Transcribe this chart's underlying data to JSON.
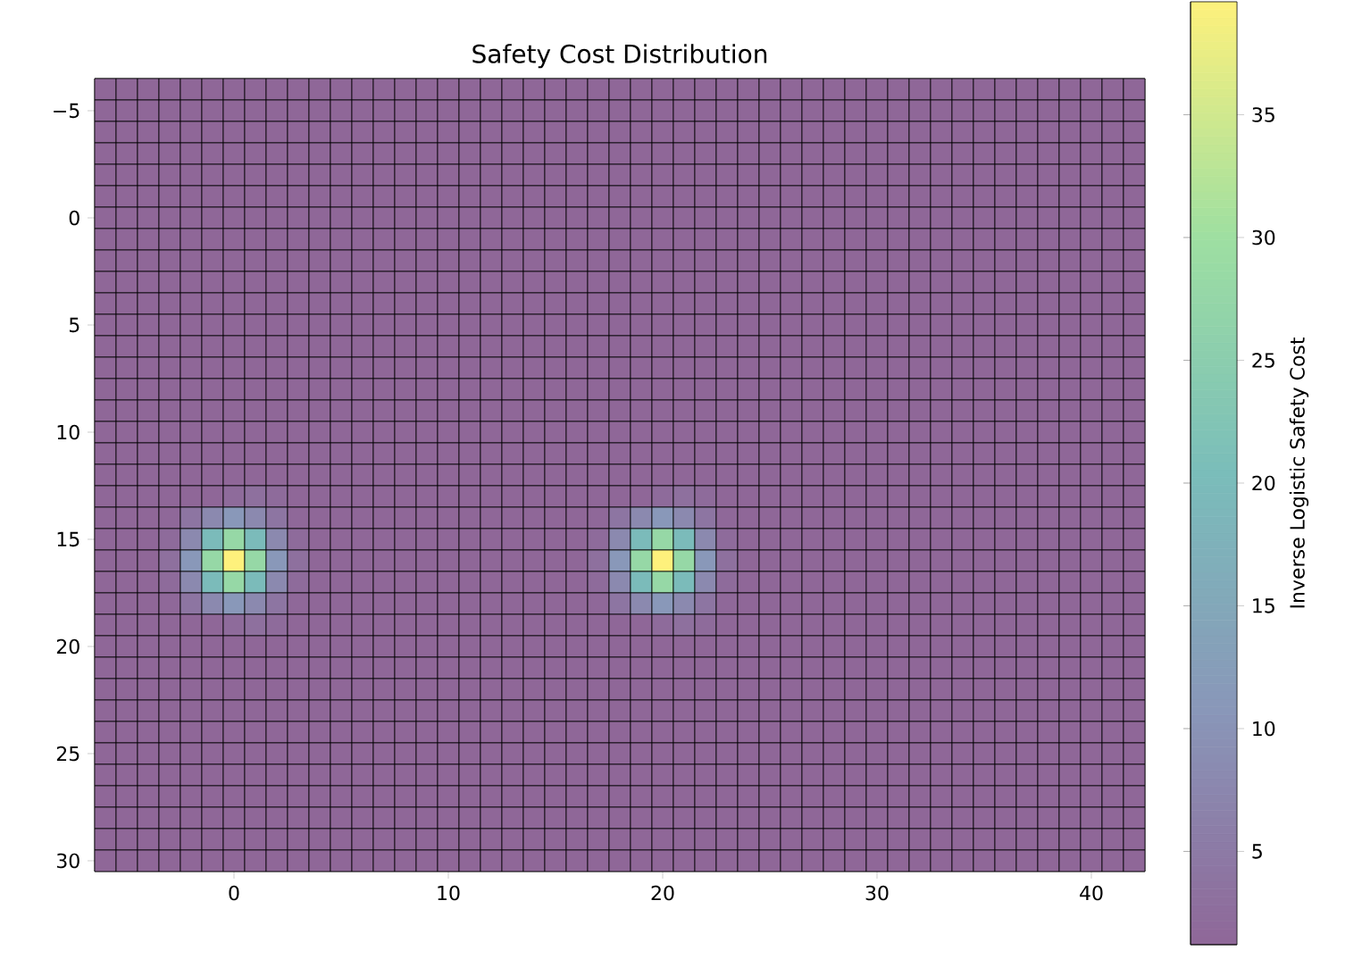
{
  "chart_data": {
    "type": "heatmap",
    "title": "Safety Cost Distribution",
    "clabel": "Inverse Logistic Safety Cost",
    "categories": [
      null,
      null,
      null,
      null,
      null,
      null,
      "0",
      null,
      null,
      null,
      null,
      null,
      null,
      null,
      null,
      null,
      "10",
      null,
      null,
      null,
      null,
      null,
      null,
      null,
      null,
      null,
      "20",
      null,
      null,
      null,
      null,
      null,
      null,
      null,
      null,
      null,
      "30",
      null,
      null,
      null,
      null,
      null,
      null,
      null,
      null,
      null,
      "40",
      null,
      null
    ],
    "y_categories": [
      null,
      "−5",
      null,
      null,
      null,
      null,
      "0",
      null,
      null,
      null,
      null,
      "5",
      null,
      null,
      null,
      null,
      "10",
      null,
      null,
      null,
      null,
      "15",
      null,
      null,
      null,
      null,
      "20",
      null,
      null,
      null,
      null,
      "25",
      null,
      null,
      null,
      null,
      "30"
    ],
    "clim": [
      1.2,
      39.6
    ],
    "cticks": [
      5,
      10,
      15,
      20,
      25,
      30,
      35
    ],
    "cells": [
      [
        1.2,
        1.2,
        1.2,
        1.2,
        1.2,
        1.2,
        1.2,
        1.2,
        1.2,
        1.2,
        1.2,
        1.2,
        1.2,
        1.2,
        1.2,
        1.2,
        1.2,
        1.2,
        1.2,
        1.2,
        1.2,
        1.2,
        1.2,
        1.2,
        1.2,
        1.2,
        1.2,
        1.2,
        1.2,
        1.2,
        1.2,
        1.2,
        1.2,
        1.2,
        1.2,
        1.2,
        1.2,
        1.2,
        1.2,
        1.2,
        1.2,
        1.2,
        1.2,
        1.2,
        1.2,
        1.2,
        1.2,
        1.2,
        1.2
      ],
      [
        1.2,
        1.2,
        1.2,
        1.2,
        1.2,
        1.2,
        1.2,
        1.2,
        1.2,
        1.2,
        1.2,
        1.2,
        1.2,
        1.2,
        1.2,
        1.2,
        1.2,
        1.2,
        1.2,
        1.2,
        1.2,
        1.2,
        1.2,
        1.2,
        1.2,
        1.2,
        1.2,
        1.2,
        1.2,
        1.2,
        1.2,
        1.2,
        1.2,
        1.2,
        1.2,
        1.2,
        1.2,
        1.2,
        1.2,
        1.2,
        1.2,
        1.2,
        1.2,
        1.2,
        1.2,
        1.2,
        1.2,
        1.2,
        1.2
      ],
      [
        1.2,
        1.2,
        1.2,
        1.2,
        1.2,
        1.2,
        1.2,
        1.2,
        1.2,
        1.2,
        1.2,
        1.2,
        1.2,
        1.2,
        1.2,
        1.2,
        1.2,
        1.2,
        1.2,
        1.2,
        1.2,
        1.2,
        1.2,
        1.2,
        1.2,
        1.2,
        1.2,
        1.2,
        1.2,
        1.2,
        1.2,
        1.2,
        1.2,
        1.2,
        1.2,
        1.2,
        1.2,
        1.2,
        1.2,
        1.2,
        1.2,
        1.2,
        1.2,
        1.2,
        1.2,
        1.2,
        1.2,
        1.2,
        1.2
      ],
      [
        1.2,
        1.2,
        1.2,
        1.2,
        1.2,
        1.2,
        1.2,
        1.2,
        1.2,
        1.2,
        1.2,
        1.2,
        1.2,
        1.2,
        1.2,
        1.2,
        1.2,
        1.2,
        1.2,
        1.2,
        1.2,
        1.2,
        1.2,
        1.2,
        1.2,
        1.2,
        1.2,
        1.2,
        1.2,
        1.2,
        1.2,
        1.2,
        1.2,
        1.2,
        1.2,
        1.2,
        1.2,
        1.2,
        1.2,
        1.2,
        1.2,
        1.2,
        1.2,
        1.2,
        1.2,
        1.2,
        1.2,
        1.2,
        1.2
      ],
      [
        1.2,
        1.2,
        1.2,
        1.2,
        1.2,
        1.2,
        1.2,
        1.2,
        1.2,
        1.2,
        1.2,
        1.2,
        1.2,
        1.2,
        1.2,
        1.2,
        1.2,
        1.2,
        1.2,
        1.2,
        1.2,
        1.2,
        1.2,
        1.2,
        1.2,
        1.2,
        1.2,
        1.2,
        1.2,
        1.2,
        1.2,
        1.2,
        1.2,
        1.2,
        1.2,
        1.2,
        1.2,
        1.2,
        1.2,
        1.2,
        1.2,
        1.2,
        1.2,
        1.2,
        1.2,
        1.2,
        1.2,
        1.2,
        1.2
      ],
      [
        1.2,
        1.2,
        1.2,
        1.2,
        1.2,
        1.2,
        1.2,
        1.2,
        1.2,
        1.2,
        1.2,
        1.2,
        1.2,
        1.2,
        1.2,
        1.2,
        1.2,
        1.2,
        1.2,
        1.2,
        1.2,
        1.2,
        1.2,
        1.2,
        1.2,
        1.2,
        1.2,
        1.2,
        1.2,
        1.2,
        1.2,
        1.2,
        1.2,
        1.2,
        1.2,
        1.2,
        1.2,
        1.2,
        1.2,
        1.2,
        1.2,
        1.2,
        1.2,
        1.2,
        1.2,
        1.2,
        1.2,
        1.2,
        1.2
      ],
      [
        1.2,
        1.2,
        1.2,
        1.2,
        1.2,
        1.2,
        1.2,
        1.2,
        1.2,
        1.2,
        1.2,
        1.2,
        1.2,
        1.2,
        1.2,
        1.2,
        1.2,
        1.2,
        1.2,
        1.2,
        1.2,
        1.2,
        1.2,
        1.2,
        1.2,
        1.2,
        1.2,
        1.2,
        1.2,
        1.2,
        1.2,
        1.2,
        1.2,
        1.2,
        1.2,
        1.2,
        1.2,
        1.2,
        1.2,
        1.2,
        1.2,
        1.2,
        1.2,
        1.2,
        1.2,
        1.2,
        1.2,
        1.2,
        1.2
      ],
      [
        1.2,
        1.2,
        1.2,
        1.2,
        1.2,
        1.2,
        1.2,
        1.2,
        1.2,
        1.2,
        1.2,
        1.2,
        1.2,
        1.2,
        1.2,
        1.2,
        1.2,
        1.2,
        1.2,
        1.2,
        1.2,
        1.2,
        1.2,
        1.2,
        1.2,
        1.2,
        1.2,
        1.2,
        1.2,
        1.2,
        1.2,
        1.2,
        1.2,
        1.2,
        1.2,
        1.2,
        1.2,
        1.2,
        1.2,
        1.2,
        1.2,
        1.2,
        1.2,
        1.2,
        1.2,
        1.2,
        1.2,
        1.2,
        1.2
      ],
      [
        1.2,
        1.2,
        1.2,
        1.2,
        1.2,
        1.2,
        1.2,
        1.2,
        1.2,
        1.2,
        1.2,
        1.2,
        1.2,
        1.2,
        1.2,
        1.2,
        1.2,
        1.2,
        1.2,
        1.2,
        1.2,
        1.2,
        1.2,
        1.2,
        1.2,
        1.2,
        1.2,
        1.2,
        1.2,
        1.2,
        1.2,
        1.2,
        1.2,
        1.2,
        1.2,
        1.2,
        1.2,
        1.2,
        1.2,
        1.2,
        1.2,
        1.2,
        1.2,
        1.2,
        1.2,
        1.2,
        1.2,
        1.2,
        1.2
      ],
      [
        1.2,
        1.2,
        1.2,
        1.2,
        1.2,
        1.2,
        1.2,
        1.2,
        1.2,
        1.2,
        1.2,
        1.2,
        1.2,
        1.2,
        1.2,
        1.2,
        1.2,
        1.2,
        1.2,
        1.2,
        1.2,
        1.2,
        1.2,
        1.2,
        1.2,
        1.2,
        1.2,
        1.2,
        1.2,
        1.2,
        1.2,
        1.2,
        1.2,
        1.2,
        1.2,
        1.2,
        1.2,
        1.2,
        1.2,
        1.2,
        1.2,
        1.2,
        1.2,
        1.2,
        1.2,
        1.2,
        1.2,
        1.2,
        1.2
      ],
      [
        1.2,
        1.2,
        1.2,
        1.2,
        1.2,
        1.2,
        1.2,
        1.2,
        1.2,
        1.2,
        1.2,
        1.2,
        1.2,
        1.2,
        1.2,
        1.2,
        1.2,
        1.2,
        1.2,
        1.2,
        1.2,
        1.2,
        1.2,
        1.2,
        1.2,
        1.2,
        1.2,
        1.2,
        1.2,
        1.2,
        1.2,
        1.2,
        1.2,
        1.2,
        1.2,
        1.2,
        1.2,
        1.2,
        1.2,
        1.2,
        1.2,
        1.2,
        1.2,
        1.2,
        1.2,
        1.2,
        1.2,
        1.2,
        1.2
      ],
      [
        1.2,
        1.2,
        1.2,
        1.2,
        1.2,
        1.2,
        1.2,
        1.2,
        1.2,
        1.2,
        1.2,
        1.2,
        1.2,
        1.2,
        1.2,
        1.2,
        1.2,
        1.2,
        1.2,
        1.2,
        1.2,
        1.2,
        1.2,
        1.2,
        1.2,
        1.2,
        1.2,
        1.2,
        1.2,
        1.2,
        1.2,
        1.2,
        1.2,
        1.2,
        1.2,
        1.2,
        1.2,
        1.2,
        1.2,
        1.2,
        1.2,
        1.2,
        1.2,
        1.2,
        1.2,
        1.2,
        1.2,
        1.2,
        1.2
      ],
      [
        1.2,
        1.2,
        1.2,
        1.2,
        1.2,
        1.2,
        1.2,
        1.2,
        1.2,
        1.2,
        1.2,
        1.2,
        1.2,
        1.2,
        1.2,
        1.2,
        1.2,
        1.2,
        1.2,
        1.2,
        1.2,
        1.2,
        1.2,
        1.2,
        1.2,
        1.2,
        1.2,
        1.2,
        1.2,
        1.2,
        1.2,
        1.2,
        1.2,
        1.2,
        1.2,
        1.2,
        1.2,
        1.2,
        1.2,
        1.2,
        1.2,
        1.2,
        1.2,
        1.2,
        1.2,
        1.2,
        1.2,
        1.2,
        1.2
      ],
      [
        1.2,
        1.2,
        1.2,
        1.2,
        1.2,
        1.2,
        1.2,
        1.2,
        1.2,
        1.2,
        1.2,
        1.2,
        1.2,
        1.2,
        1.2,
        1.2,
        1.2,
        1.2,
        1.2,
        1.2,
        1.2,
        1.2,
        1.2,
        1.2,
        1.2,
        1.2,
        1.2,
        1.2,
        1.2,
        1.2,
        1.2,
        1.2,
        1.2,
        1.2,
        1.2,
        1.2,
        1.2,
        1.2,
        1.2,
        1.2,
        1.2,
        1.2,
        1.2,
        1.2,
        1.2,
        1.2,
        1.2,
        1.2,
        1.2
      ],
      [
        1.2,
        1.2,
        1.2,
        1.2,
        1.2,
        1.2,
        1.2,
        1.2,
        1.2,
        1.2,
        1.2,
        1.2,
        1.2,
        1.2,
        1.2,
        1.2,
        1.2,
        1.2,
        1.2,
        1.2,
        1.2,
        1.2,
        1.2,
        1.2,
        1.2,
        1.2,
        1.2,
        1.2,
        1.2,
        1.2,
        1.2,
        1.2,
        1.2,
        1.2,
        1.2,
        1.2,
        1.2,
        1.2,
        1.2,
        1.2,
        1.2,
        1.2,
        1.2,
        1.2,
        1.2,
        1.2,
        1.2,
        1.2,
        1.2
      ],
      [
        1.2,
        1.2,
        1.2,
        1.2,
        1.2,
        1.2,
        1.2,
        1.2,
        1.2,
        1.2,
        1.2,
        1.2,
        1.2,
        1.2,
        1.2,
        1.2,
        1.2,
        1.2,
        1.2,
        1.2,
        1.2,
        1.2,
        1.2,
        1.2,
        1.2,
        1.2,
        1.2,
        1.2,
        1.2,
        1.2,
        1.2,
        1.2,
        1.2,
        1.2,
        1.2,
        1.2,
        1.2,
        1.2,
        1.2,
        1.2,
        1.2,
        1.2,
        1.2,
        1.2,
        1.2,
        1.2,
        1.2,
        1.2,
        1.2
      ],
      [
        1.2,
        1.2,
        1.2,
        1.2,
        1.2,
        1.2,
        1.2,
        1.2,
        1.2,
        1.2,
        1.2,
        1.2,
        1.2,
        1.2,
        1.2,
        1.2,
        1.2,
        1.2,
        1.2,
        1.2,
        1.2,
        1.2,
        1.2,
        1.2,
        1.2,
        1.2,
        1.2,
        1.2,
        1.2,
        1.2,
        1.2,
        1.2,
        1.2,
        1.2,
        1.2,
        1.2,
        1.2,
        1.2,
        1.2,
        1.2,
        1.2,
        1.2,
        1.2,
        1.2,
        1.2,
        1.2,
        1.2,
        1.2,
        1.2
      ],
      [
        1.2,
        1.2,
        1.2,
        1.2,
        1.2,
        1.2,
        1.2,
        1.2,
        1.2,
        1.2,
        1.2,
        1.2,
        1.2,
        1.2,
        1.2,
        1.2,
        1.2,
        1.2,
        1.2,
        1.2,
        1.2,
        1.2,
        1.2,
        1.2,
        1.2,
        1.2,
        1.2,
        1.2,
        1.2,
        1.2,
        1.2,
        1.2,
        1.2,
        1.2,
        1.2,
        1.2,
        1.2,
        1.2,
        1.2,
        1.2,
        1.2,
        1.2,
        1.2,
        1.2,
        1.2,
        1.2,
        1.2,
        1.2,
        1.2
      ],
      [
        1.2,
        1.2,
        1.2,
        1.2,
        1.2,
        1.2,
        1.2,
        1.2,
        1.2,
        1.2,
        1.2,
        1.2,
        1.2,
        1.2,
        1.2,
        1.2,
        1.2,
        1.2,
        1.2,
        1.2,
        1.2,
        1.2,
        1.2,
        1.2,
        1.2,
        1.2,
        1.2,
        1.2,
        1.2,
        1.2,
        1.2,
        1.2,
        1.2,
        1.2,
        1.2,
        1.2,
        1.2,
        1.2,
        1.2,
        1.2,
        1.2,
        1.2,
        1.2,
        1.2,
        1.2,
        1.2,
        1.2,
        1.2,
        1.2
      ],
      [
        1.2,
        1.2,
        1.2,
        1.2,
        1.2,
        1.2,
        2,
        3,
        2,
        1.2,
        1.2,
        1.2,
        1.2,
        1.2,
        1.2,
        1.2,
        1.2,
        1.2,
        1.2,
        1.2,
        1.2,
        1.2,
        1.2,
        1.2,
        1.2,
        1.2,
        2,
        3,
        2,
        1.2,
        1.2,
        1.2,
        1.2,
        1.2,
        1.2,
        1.2,
        1.2,
        1.2,
        1.2,
        1.2,
        1.2,
        1.2,
        1.2,
        1.2,
        1.2,
        1.2,
        1.2,
        1.2,
        1.2
      ],
      [
        1.2,
        1.2,
        1.2,
        1.5,
        4,
        8,
        11,
        8,
        4,
        1.5,
        1.2,
        1.2,
        1.2,
        1.2,
        1.2,
        1.2,
        1.2,
        1.2,
        1.2,
        1.2,
        1.2,
        1.2,
        1.2,
        1.5,
        4,
        8,
        11,
        8,
        4,
        1.5,
        1.2,
        1.2,
        1.2,
        1.2,
        1.2,
        1.2,
        1.2,
        1.2,
        1.2,
        1.2,
        1.2,
        1.2,
        1.2,
        1.2,
        1.2,
        1.2,
        1.2,
        1.2,
        1.2
      ],
      [
        1.2,
        1.2,
        1.2,
        2,
        8,
        20,
        28,
        20,
        8,
        2,
        1.2,
        1.2,
        1.2,
        1.2,
        1.2,
        1.2,
        1.2,
        1.2,
        1.2,
        1.2,
        1.2,
        1.2,
        1.2,
        2,
        8,
        20,
        28,
        20,
        8,
        2,
        1.2,
        1.2,
        1.2,
        1.2,
        1.2,
        1.2,
        1.2,
        1.2,
        1.2,
        1.2,
        1.2,
        1.2,
        1.2,
        1.2,
        1.2,
        1.2,
        1.2,
        1.2,
        1.2
      ],
      [
        1.2,
        1.2,
        1.2,
        3,
        11,
        28,
        39.6,
        28,
        11,
        3,
        1.2,
        1.2,
        1.2,
        1.2,
        1.2,
        1.2,
        1.2,
        1.2,
        1.2,
        1.2,
        1.2,
        1.2,
        1.2,
        3,
        11,
        28,
        39.6,
        28,
        11,
        3,
        1.2,
        1.2,
        1.2,
        1.2,
        1.2,
        1.2,
        1.2,
        1.2,
        1.2,
        1.2,
        1.2,
        1.2,
        1.2,
        1.2,
        1.2,
        1.2,
        1.2,
        1.2,
        1.2
      ],
      [
        1.2,
        1.2,
        1.2,
        2,
        8,
        20,
        28,
        20,
        8,
        2,
        1.2,
        1.2,
        1.2,
        1.2,
        1.2,
        1.2,
        1.2,
        1.2,
        1.2,
        1.2,
        1.2,
        1.2,
        1.2,
        2,
        8,
        20,
        28,
        20,
        8,
        2,
        1.2,
        1.2,
        1.2,
        1.2,
        1.2,
        1.2,
        1.2,
        1.2,
        1.2,
        1.2,
        1.2,
        1.2,
        1.2,
        1.2,
        1.2,
        1.2,
        1.2,
        1.2,
        1.2
      ],
      [
        1.2,
        1.2,
        1.2,
        1.5,
        4,
        8,
        11,
        8,
        4,
        1.5,
        1.2,
        1.2,
        1.2,
        1.2,
        1.2,
        1.2,
        1.2,
        1.2,
        1.2,
        1.2,
        1.2,
        1.2,
        1.2,
        1.5,
        4,
        8,
        11,
        8,
        4,
        1.5,
        1.2,
        1.2,
        1.2,
        1.2,
        1.2,
        1.2,
        1.2,
        1.2,
        1.2,
        1.2,
        1.2,
        1.2,
        1.2,
        1.2,
        1.2,
        1.2,
        1.2,
        1.2,
        1.2
      ],
      [
        1.2,
        1.2,
        1.2,
        1.2,
        1.2,
        1.2,
        2,
        3,
        2,
        1.2,
        1.2,
        1.2,
        1.2,
        1.2,
        1.2,
        1.2,
        1.2,
        1.2,
        1.2,
        1.2,
        1.2,
        1.2,
        1.2,
        1.2,
        1.2,
        1.2,
        2,
        3,
        2,
        1.2,
        1.2,
        1.2,
        1.2,
        1.2,
        1.2,
        1.2,
        1.2,
        1.2,
        1.2,
        1.2,
        1.2,
        1.2,
        1.2,
        1.2,
        1.2,
        1.2,
        1.2,
        1.2,
        1.2
      ],
      [
        1.2,
        1.2,
        1.2,
        1.2,
        1.2,
        1.2,
        1.2,
        1.2,
        1.2,
        1.2,
        1.2,
        1.2,
        1.2,
        1.2,
        1.2,
        1.2,
        1.2,
        1.2,
        1.2,
        1.2,
        1.2,
        1.2,
        1.2,
        1.2,
        1.2,
        1.2,
        1.2,
        1.2,
        1.2,
        1.2,
        1.2,
        1.2,
        1.2,
        1.2,
        1.2,
        1.2,
        1.2,
        1.2,
        1.2,
        1.2,
        1.2,
        1.2,
        1.2,
        1.2,
        1.2,
        1.2,
        1.2,
        1.2,
        1.2
      ],
      [
        1.2,
        1.2,
        1.2,
        1.2,
        1.2,
        1.2,
        1.2,
        1.2,
        1.2,
        1.2,
        1.2,
        1.2,
        1.2,
        1.2,
        1.2,
        1.2,
        1.2,
        1.2,
        1.2,
        1.2,
        1.2,
        1.2,
        1.2,
        1.2,
        1.2,
        1.2,
        1.2,
        1.2,
        1.2,
        1.2,
        1.2,
        1.2,
        1.2,
        1.2,
        1.2,
        1.2,
        1.2,
        1.2,
        1.2,
        1.2,
        1.2,
        1.2,
        1.2,
        1.2,
        1.2,
        1.2,
        1.2,
        1.2,
        1.2
      ],
      [
        1.2,
        1.2,
        1.2,
        1.2,
        1.2,
        1.2,
        1.2,
        1.2,
        1.2,
        1.2,
        1.2,
        1.2,
        1.2,
        1.2,
        1.2,
        1.2,
        1.2,
        1.2,
        1.2,
        1.2,
        1.2,
        1.2,
        1.2,
        1.2,
        1.2,
        1.2,
        1.2,
        1.2,
        1.2,
        1.2,
        1.2,
        1.2,
        1.2,
        1.2,
        1.2,
        1.2,
        1.2,
        1.2,
        1.2,
        1.2,
        1.2,
        1.2,
        1.2,
        1.2,
        1.2,
        1.2,
        1.2,
        1.2,
        1.2
      ],
      [
        1.2,
        1.2,
        1.2,
        1.2,
        1.2,
        1.2,
        1.2,
        1.2,
        1.2,
        1.2,
        1.2,
        1.2,
        1.2,
        1.2,
        1.2,
        1.2,
        1.2,
        1.2,
        1.2,
        1.2,
        1.2,
        1.2,
        1.2,
        1.2,
        1.2,
        1.2,
        1.2,
        1.2,
        1.2,
        1.2,
        1.2,
        1.2,
        1.2,
        1.2,
        1.2,
        1.2,
        1.2,
        1.2,
        1.2,
        1.2,
        1.2,
        1.2,
        1.2,
        1.2,
        1.2,
        1.2,
        1.2,
        1.2,
        1.2
      ],
      [
        1.2,
        1.2,
        1.2,
        1.2,
        1.2,
        1.2,
        1.2,
        1.2,
        1.2,
        1.2,
        1.2,
        1.2,
        1.2,
        1.2,
        1.2,
        1.2,
        1.2,
        1.2,
        1.2,
        1.2,
        1.2,
        1.2,
        1.2,
        1.2,
        1.2,
        1.2,
        1.2,
        1.2,
        1.2,
        1.2,
        1.2,
        1.2,
        1.2,
        1.2,
        1.2,
        1.2,
        1.2,
        1.2,
        1.2,
        1.2,
        1.2,
        1.2,
        1.2,
        1.2,
        1.2,
        1.2,
        1.2,
        1.2,
        1.2
      ],
      [
        1.2,
        1.2,
        1.2,
        1.2,
        1.2,
        1.2,
        1.2,
        1.2,
        1.2,
        1.2,
        1.2,
        1.2,
        1.2,
        1.2,
        1.2,
        1.2,
        1.2,
        1.2,
        1.2,
        1.2,
        1.2,
        1.2,
        1.2,
        1.2,
        1.2,
        1.2,
        1.2,
        1.2,
        1.2,
        1.2,
        1.2,
        1.2,
        1.2,
        1.2,
        1.2,
        1.2,
        1.2,
        1.2,
        1.2,
        1.2,
        1.2,
        1.2,
        1.2,
        1.2,
        1.2,
        1.2,
        1.2,
        1.2,
        1.2
      ],
      [
        1.2,
        1.2,
        1.2,
        1.2,
        1.2,
        1.2,
        1.2,
        1.2,
        1.2,
        1.2,
        1.2,
        1.2,
        1.2,
        1.2,
        1.2,
        1.2,
        1.2,
        1.2,
        1.2,
        1.2,
        1.2,
        1.2,
        1.2,
        1.2,
        1.2,
        1.2,
        1.2,
        1.2,
        1.2,
        1.2,
        1.2,
        1.2,
        1.2,
        1.2,
        1.2,
        1.2,
        1.2,
        1.2,
        1.2,
        1.2,
        1.2,
        1.2,
        1.2,
        1.2,
        1.2,
        1.2,
        1.2,
        1.2,
        1.2
      ],
      [
        1.2,
        1.2,
        1.2,
        1.2,
        1.2,
        1.2,
        1.2,
        1.2,
        1.2,
        1.2,
        1.2,
        1.2,
        1.2,
        1.2,
        1.2,
        1.2,
        1.2,
        1.2,
        1.2,
        1.2,
        1.2,
        1.2,
        1.2,
        1.2,
        1.2,
        1.2,
        1.2,
        1.2,
        1.2,
        1.2,
        1.2,
        1.2,
        1.2,
        1.2,
        1.2,
        1.2,
        1.2,
        1.2,
        1.2,
        1.2,
        1.2,
        1.2,
        1.2,
        1.2,
        1.2,
        1.2,
        1.2,
        1.2,
        1.2
      ],
      [
        1.2,
        1.2,
        1.2,
        1.2,
        1.2,
        1.2,
        1.2,
        1.2,
        1.2,
        1.2,
        1.2,
        1.2,
        1.2,
        1.2,
        1.2,
        1.2,
        1.2,
        1.2,
        1.2,
        1.2,
        1.2,
        1.2,
        1.2,
        1.2,
        1.2,
        1.2,
        1.2,
        1.2,
        1.2,
        1.2,
        1.2,
        1.2,
        1.2,
        1.2,
        1.2,
        1.2,
        1.2,
        1.2,
        1.2,
        1.2,
        1.2,
        1.2,
        1.2,
        1.2,
        1.2,
        1.2,
        1.2,
        1.2,
        1.2
      ],
      [
        1.2,
        1.2,
        1.2,
        1.2,
        1.2,
        1.2,
        1.2,
        1.2,
        1.2,
        1.2,
        1.2,
        1.2,
        1.2,
        1.2,
        1.2,
        1.2,
        1.2,
        1.2,
        1.2,
        1.2,
        1.2,
        1.2,
        1.2,
        1.2,
        1.2,
        1.2,
        1.2,
        1.2,
        1.2,
        1.2,
        1.2,
        1.2,
        1.2,
        1.2,
        1.2,
        1.2,
        1.2,
        1.2,
        1.2,
        1.2,
        1.2,
        1.2,
        1.2,
        1.2,
        1.2,
        1.2,
        1.2,
        1.2,
        1.2
      ],
      [
        1.2,
        1.2,
        1.2,
        1.2,
        1.2,
        1.2,
        1.2,
        1.2,
        1.2,
        1.2,
        1.2,
        1.2,
        1.2,
        1.2,
        1.2,
        1.2,
        1.2,
        1.2,
        1.2,
        1.2,
        1.2,
        1.2,
        1.2,
        1.2,
        1.2,
        1.2,
        1.2,
        1.2,
        1.2,
        1.2,
        1.2,
        1.2,
        1.2,
        1.2,
        1.2,
        1.2,
        1.2,
        1.2,
        1.2,
        1.2,
        1.2,
        1.2,
        1.2,
        1.2,
        1.2,
        1.2,
        1.2,
        1.2,
        1.2
      ]
    ]
  }
}
